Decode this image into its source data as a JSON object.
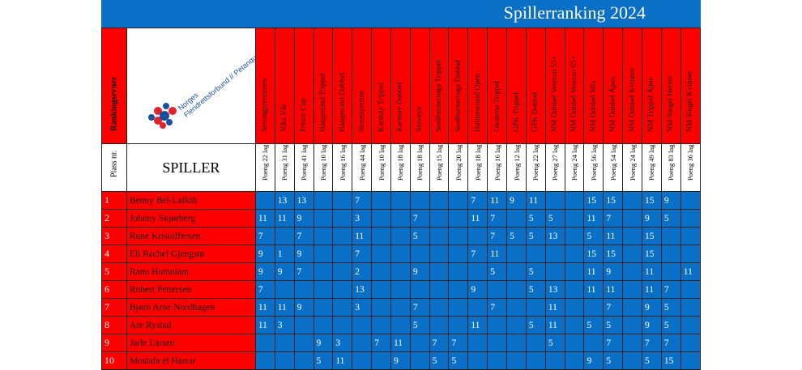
{
  "title": "Spillerranking 2024",
  "rank_header": "Rankingsevner",
  "logo_text": [
    "Norges",
    "Fleridrettsforbund // Petanque"
  ],
  "place_header": "Plass nr.",
  "player_header": "SPILLER",
  "events": [
    "Sesongpremieren",
    "Vika Vår",
    "Frisco Cup",
    "Haugesund Trippel",
    "Haugesund Dobbel",
    "Stuenspretten",
    "Karmøy Trippel",
    "Karmøy Dobbel",
    "Stuvøya",
    "Stedfturneringa Trippel",
    "Stedfturneringa Dobbel",
    "Holmestrand Open",
    "Glomma Trippel",
    "GPK Trippel",
    "GPK Dobbel",
    "NM Dobbel Veteran 55+",
    "NM Dobbel Veteran 65+",
    "NM Dobbel Mix",
    "NM Dobbel Åpen",
    "NM Dobbel Kvinner",
    "NM Trippel Åpen",
    "NM Singel Herrer",
    "NM Singel Kvinner"
  ],
  "points_labels": [
    "Poeng 22 lag",
    "Poeng 31 lag",
    "Poeng 41 lag",
    "Poeng 10 lag",
    "Poeng 16 lag",
    "Poeng 44 lag",
    "Poeng 10 lag",
    "Poeng 18 lag",
    "Poeng 18 lag",
    "Poeng 15 lag",
    "Poeng 20 lag",
    "Poeng 18 lag",
    "Poeng 16 lag",
    "Poeng 12 lag",
    "Poeng 22 lag",
    "Poeng 27 lag",
    "Poeng 24 lag",
    "Poeng 56 lag",
    "Poeng 54 lag",
    "Poeng 24 lag",
    "Poeng 49 lag",
    "Poeng 83 lag",
    "Poeng 36 lag"
  ],
  "players": [
    {
      "rank": "1",
      "name": "Benny Bel-Lafkih",
      "scores": [
        "",
        "13",
        "13",
        "",
        "",
        "7",
        "",
        "",
        "",
        "",
        "",
        "7",
        "11",
        "9",
        "11",
        "",
        "",
        "15",
        "15",
        "",
        "15",
        "9",
        ""
      ]
    },
    {
      "rank": "2",
      "name": "Johnny Skjørberg",
      "scores": [
        "11",
        "11",
        "9",
        "",
        "",
        "3",
        "",
        "",
        "7",
        "",
        "",
        "11",
        "7",
        "",
        "5",
        "5",
        "",
        "11",
        "7",
        "",
        "9",
        "5",
        ""
      ]
    },
    {
      "rank": "3",
      "name": "Rune Kristoffersen",
      "scores": [
        "7",
        "",
        "7",
        "",
        "",
        "11",
        "",
        "",
        "5",
        "",
        "",
        "",
        "7",
        "5",
        "5",
        "13",
        "",
        "5",
        "11",
        "",
        "15",
        "",
        ""
      ]
    },
    {
      "rank": "4",
      "name": "Eli Rachel Gjengstø",
      "scores": [
        "9",
        "1",
        "9",
        "",
        "",
        "7",
        "",
        "",
        "",
        "",
        "",
        "7",
        "11",
        "",
        "",
        "",
        "",
        "15",
        "15",
        "",
        "15",
        "",
        ""
      ]
    },
    {
      "rank": "5",
      "name": "Ranu Homniam",
      "scores": [
        "9",
        "9",
        "7",
        "",
        "",
        "2",
        "",
        "",
        "9",
        "",
        "",
        "",
        "5",
        "",
        "5",
        "",
        "",
        "11",
        "9",
        "",
        "11",
        "",
        "11"
      ]
    },
    {
      "rank": "6",
      "name": "Robert Pettersen",
      "scores": [
        "7",
        "",
        "",
        "",
        "",
        "13",
        "",
        "",
        "",
        "",
        "",
        "9",
        "",
        "",
        "5",
        "13",
        "",
        "11",
        "11",
        "",
        "11",
        "7",
        ""
      ]
    },
    {
      "rank": "7",
      "name": "Bjørn Arne Nordhagen",
      "scores": [
        "11",
        "11",
        "9",
        "",
        "",
        "3",
        "",
        "",
        "7",
        "",
        "",
        "",
        "7",
        "",
        "",
        "11",
        "",
        "",
        "7",
        "",
        "9",
        "5",
        ""
      ]
    },
    {
      "rank": "8",
      "name": "Are Rystad",
      "scores": [
        "11",
        "3",
        "",
        "",
        "",
        "",
        "",
        "",
        "5",
        "",
        "",
        "11",
        "",
        "",
        "5",
        "11",
        "",
        "5",
        "5",
        "",
        "9",
        "5",
        ""
      ]
    },
    {
      "rank": "9",
      "name": "Jarle Larsen",
      "scores": [
        "",
        "",
        "",
        "9",
        "3",
        "",
        "7",
        "11",
        "",
        "7",
        "7",
        "",
        "",
        "",
        "",
        "5",
        "",
        "",
        "7",
        "",
        "7",
        "7",
        ""
      ]
    },
    {
      "rank": "10",
      "name": "Mostafa el Harrar",
      "scores": [
        "",
        "",
        "",
        "5",
        "11",
        "",
        "",
        "9",
        "",
        "5",
        "5",
        "",
        "",
        "",
        "",
        "",
        "",
        "9",
        "5",
        "",
        "5",
        "15",
        ""
      ]
    }
  ]
}
